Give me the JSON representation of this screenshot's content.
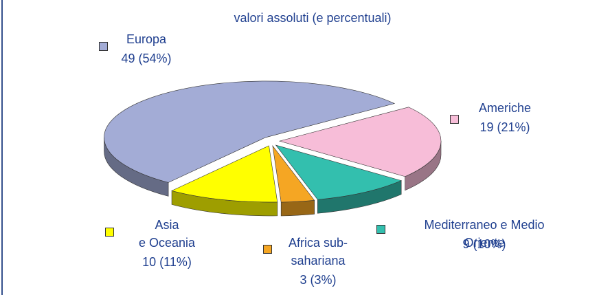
{
  "chart_data": {
    "type": "pie",
    "title": "valori assoluti (e percentuali)",
    "categories": [
      "Europa",
      "Americhe",
      "Mediterraneo e Medio Oriente",
      "Africa sub-\nsahariana",
      "Asia\ne Oceania"
    ],
    "values": [
      49,
      19,
      9,
      3,
      10
    ],
    "value_labels": [
      "49 (54%)",
      "19 (21%)",
      "9 (10%)",
      "3 (3%)",
      "10 (11%)"
    ],
    "colors": [
      "#a3acd6",
      "#f7bdd8",
      "#33bfae",
      "#f5a623",
      "#ffff00"
    ]
  }
}
